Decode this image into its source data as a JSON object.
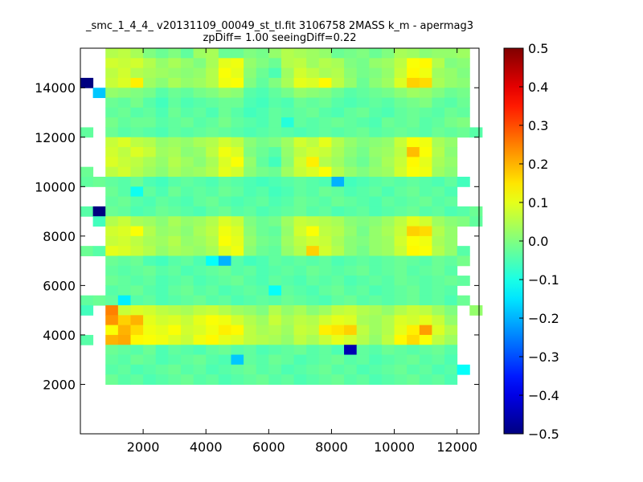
{
  "chart_data": {
    "type": "heatmap",
    "title_line1": "_smc_1_4_4_ v20131109_00049_st_tl.fit 3106758 2MASS k_m - apermag3",
    "title_line2": "zpDiff= 1.00 seeingDiff=0.22",
    "xlabel": "",
    "ylabel": "",
    "xlim": [
      0,
      12700
    ],
    "ylim": [
      0,
      15600
    ],
    "xticks": [
      2000,
      4000,
      6000,
      8000,
      10000,
      12000
    ],
    "yticks": [
      2000,
      4000,
      6000,
      8000,
      10000,
      12000,
      14000
    ],
    "xtick_labels": [
      "2000",
      "4000",
      "6000",
      "8000",
      "10000",
      "12000"
    ],
    "ytick_labels": [
      "2000",
      "4000",
      "6000",
      "8000",
      "10000",
      "12000",
      "14000"
    ],
    "colorbar": {
      "colormap": "jet",
      "vmin": -0.5,
      "vmax": 0.5,
      "ticks": [
        0.5,
        0.4,
        0.3,
        0.2,
        0.1,
        0.0,
        -0.1,
        -0.2,
        -0.3,
        -0.4,
        -0.5
      ],
      "tick_labels": [
        "0.5",
        "0.4",
        "0.3",
        "0.2",
        "0.1",
        "0.0",
        "−0.1",
        "−0.2",
        "−0.3",
        "−0.4",
        "−0.5"
      ]
    },
    "grid": false,
    "cell_size": 400,
    "y_rows_top_to_bottom": [
      15600,
      200
    ],
    "values": [
      [
        null,
        null,
        0.05,
        0.06,
        0.04,
        0.0,
        -0.02,
        0.0,
        -0.03,
        0.03,
        0.04,
        -0.02,
        -0.02,
        0.0,
        -0.01,
        0.02,
        0.05,
        0.04,
        0.03,
        0.02,
        -0.02,
        -0.01,
        0.0,
        -0.02,
        0.0,
        0.04,
        0.03,
        0.01,
        0.02,
        0.02,
        0.03,
        null
      ],
      [
        null,
        null,
        0.08,
        0.07,
        0.08,
        0.05,
        0.02,
        0.04,
        0.02,
        0.0,
        0.04,
        0.1,
        0.11,
        0.02,
        0.0,
        -0.02,
        0.05,
        0.06,
        0.03,
        0.05,
        0.04,
        0.0,
        -0.01,
        0.02,
        0.03,
        0.06,
        0.12,
        0.13,
        0.05,
        0.0,
        0.01,
        null
      ],
      [
        null,
        null,
        0.06,
        0.08,
        0.05,
        0.04,
        0.03,
        0.02,
        0.01,
        0.02,
        0.05,
        0.12,
        0.1,
        0.01,
        -0.02,
        -0.05,
        0.03,
        0.08,
        0.06,
        0.04,
        0.05,
        0.01,
        -0.01,
        0.0,
        0.02,
        0.07,
        0.13,
        0.11,
        0.03,
        0.02,
        0.0,
        null
      ],
      [
        -0.5,
        null,
        0.07,
        0.09,
        0.14,
        0.03,
        0.01,
        0.04,
        0.02,
        0.03,
        0.05,
        0.11,
        0.12,
        0.0,
        -0.03,
        0.0,
        0.04,
        0.1,
        0.09,
        0.13,
        0.06,
        0.02,
        -0.02,
        0.01,
        0.03,
        0.09,
        0.17,
        0.16,
        0.04,
        0.02,
        0.01,
        null
      ],
      [
        null,
        -0.18,
        0.02,
        0.01,
        0.0,
        -0.01,
        -0.04,
        -0.02,
        -0.03,
        -0.01,
        0.0,
        0.02,
        0.01,
        -0.04,
        -0.05,
        -0.03,
        -0.01,
        0.02,
        0.01,
        0.0,
        -0.02,
        -0.04,
        -0.03,
        -0.02,
        -0.01,
        0.01,
        0.03,
        0.02,
        0.0,
        -0.02,
        -0.01,
        null
      ],
      [
        null,
        null,
        -0.02,
        -0.03,
        -0.01,
        -0.04,
        -0.06,
        -0.03,
        -0.05,
        -0.04,
        -0.03,
        -0.02,
        -0.02,
        -0.05,
        -0.06,
        -0.04,
        -0.05,
        -0.02,
        -0.03,
        -0.02,
        -0.04,
        -0.05,
        -0.04,
        -0.03,
        -0.04,
        -0.02,
        -0.01,
        0.0,
        -0.03,
        -0.04,
        -0.02,
        null
      ],
      [
        null,
        null,
        -0.03,
        -0.02,
        -0.04,
        -0.03,
        -0.05,
        -0.02,
        -0.04,
        -0.03,
        -0.05,
        -0.02,
        -0.04,
        -0.06,
        -0.05,
        -0.03,
        -0.04,
        -0.03,
        -0.02,
        -0.04,
        -0.05,
        -0.03,
        -0.02,
        -0.04,
        -0.05,
        -0.03,
        -0.02,
        -0.03,
        -0.04,
        -0.02,
        -0.03,
        null
      ],
      [
        null,
        null,
        -0.01,
        -0.03,
        -0.02,
        -0.02,
        -0.04,
        -0.03,
        -0.02,
        -0.04,
        -0.03,
        -0.01,
        -0.03,
        -0.04,
        -0.05,
        -0.03,
        -0.09,
        -0.03,
        -0.04,
        -0.03,
        -0.02,
        -0.03,
        -0.04,
        -0.05,
        -0.02,
        -0.03,
        -0.02,
        -0.04,
        -0.03,
        -0.01,
        0.0,
        null
      ],
      [
        -0.03,
        null,
        -0.02,
        -0.04,
        -0.03,
        -0.04,
        -0.05,
        -0.03,
        -0.04,
        -0.03,
        -0.02,
        -0.03,
        -0.04,
        -0.05,
        -0.04,
        -0.03,
        -0.04,
        -0.05,
        -0.04,
        -0.03,
        -0.04,
        -0.03,
        -0.02,
        -0.04,
        -0.03,
        -0.02,
        -0.03,
        -0.04,
        -0.02,
        -0.03,
        -0.02,
        -0.04
      ],
      [
        null,
        null,
        0.07,
        0.09,
        0.06,
        0.05,
        0.02,
        0.03,
        0.02,
        0.04,
        0.05,
        0.08,
        0.06,
        0.01,
        -0.01,
        0.0,
        0.03,
        0.08,
        0.06,
        0.1,
        0.05,
        0.02,
        0.0,
        0.01,
        0.02,
        0.07,
        0.12,
        0.11,
        0.04,
        0.02,
        null,
        null
      ],
      [
        null,
        null,
        0.08,
        0.06,
        0.09,
        0.07,
        0.03,
        0.04,
        0.01,
        0.02,
        0.06,
        0.11,
        0.09,
        0.0,
        -0.02,
        -0.04,
        0.02,
        0.06,
        0.08,
        0.07,
        0.04,
        0.01,
        -0.01,
        0.02,
        0.03,
        0.06,
        0.19,
        0.12,
        0.05,
        0.01,
        null,
        null
      ],
      [
        null,
        null,
        0.09,
        0.07,
        0.06,
        0.04,
        0.02,
        0.05,
        0.03,
        0.01,
        0.04,
        0.09,
        0.12,
        0.02,
        -0.03,
        -0.06,
        0.01,
        0.08,
        0.14,
        0.05,
        0.03,
        0.0,
        -0.02,
        0.01,
        0.04,
        0.07,
        0.13,
        0.1,
        0.04,
        0.02,
        null,
        null
      ],
      [
        -0.02,
        null,
        0.06,
        0.08,
        0.05,
        0.03,
        0.01,
        0.04,
        0.02,
        0.03,
        0.05,
        0.1,
        0.08,
        0.01,
        -0.01,
        -0.02,
        0.03,
        0.07,
        0.09,
        0.12,
        0.05,
        0.02,
        0.0,
        0.02,
        0.03,
        0.08,
        0.12,
        0.11,
        0.03,
        0.01,
        null,
        null
      ],
      [
        -0.03,
        -0.02,
        -0.03,
        -0.04,
        -0.02,
        -0.05,
        -0.06,
        -0.04,
        -0.03,
        -0.04,
        -0.05,
        -0.03,
        -0.04,
        -0.05,
        -0.06,
        -0.05,
        -0.04,
        -0.03,
        -0.04,
        -0.05,
        -0.2,
        -0.06,
        -0.05,
        -0.04,
        -0.03,
        -0.04,
        -0.03,
        -0.04,
        -0.05,
        -0.03,
        -0.06,
        null
      ],
      [
        null,
        null,
        -0.02,
        -0.04,
        -0.11,
        -0.03,
        -0.05,
        -0.02,
        -0.04,
        -0.03,
        -0.04,
        -0.02,
        -0.03,
        -0.05,
        -0.04,
        -0.06,
        -0.05,
        -0.03,
        -0.04,
        -0.02,
        -0.03,
        -0.05,
        -0.04,
        -0.03,
        -0.05,
        -0.03,
        -0.02,
        -0.04,
        -0.03,
        -0.05,
        null,
        null
      ],
      [
        null,
        null,
        -0.03,
        -0.02,
        -0.04,
        -0.05,
        -0.03,
        -0.04,
        -0.05,
        -0.03,
        -0.02,
        -0.04,
        -0.05,
        -0.04,
        -0.03,
        -0.05,
        -0.04,
        -0.02,
        -0.03,
        -0.04,
        -0.02,
        -0.03,
        -0.04,
        -0.05,
        -0.03,
        -0.04,
        -0.03,
        -0.02,
        -0.04,
        -0.03,
        null,
        null
      ],
      [
        -0.04,
        -0.5,
        -0.02,
        -0.03,
        -0.05,
        -0.04,
        -0.02,
        -0.03,
        -0.04,
        -0.05,
        -0.03,
        -0.02,
        -0.04,
        -0.03,
        -0.05,
        -0.04,
        -0.03,
        -0.02,
        -0.04,
        -0.03,
        -0.05,
        -0.04,
        -0.03,
        -0.05,
        -0.04,
        -0.03,
        -0.02,
        -0.04,
        -0.03,
        -0.05,
        -0.04,
        -0.02
      ],
      [
        null,
        -0.06,
        0.05,
        0.07,
        0.04,
        0.03,
        0.01,
        0.04,
        0.02,
        0.03,
        0.05,
        0.09,
        0.07,
        0.0,
        -0.02,
        -0.01,
        0.03,
        0.07,
        0.06,
        0.05,
        0.04,
        0.01,
        0.0,
        0.01,
        0.03,
        0.06,
        0.1,
        0.08,
        0.03,
        0.01,
        0.0,
        -0.03
      ],
      [
        null,
        null,
        0.08,
        0.09,
        0.12,
        0.05,
        0.02,
        0.03,
        0.01,
        0.04,
        0.06,
        0.11,
        0.09,
        0.01,
        -0.02,
        -0.03,
        0.02,
        0.08,
        0.12,
        0.06,
        0.05,
        0.02,
        -0.01,
        0.02,
        0.04,
        0.07,
        0.17,
        0.16,
        0.05,
        0.02,
        null,
        null
      ],
      [
        null,
        null,
        0.07,
        0.08,
        0.06,
        0.04,
        0.03,
        0.05,
        0.02,
        0.03,
        0.05,
        0.12,
        0.1,
        0.02,
        -0.01,
        -0.02,
        0.03,
        0.06,
        0.08,
        0.07,
        0.04,
        0.01,
        0.0,
        0.02,
        0.03,
        0.08,
        0.12,
        0.11,
        0.04,
        0.02,
        null,
        null
      ],
      [
        -0.02,
        -0.04,
        0.1,
        0.09,
        0.07,
        0.05,
        0.02,
        0.04,
        0.03,
        0.02,
        0.04,
        0.09,
        0.11,
        0.01,
        -0.02,
        -0.03,
        0.02,
        0.05,
        0.17,
        0.08,
        0.05,
        0.01,
        -0.01,
        0.02,
        0.03,
        0.07,
        0.13,
        0.12,
        0.05,
        0.02,
        -0.04,
        null
      ],
      [
        null,
        null,
        -0.02,
        -0.03,
        -0.02,
        -0.05,
        -0.06,
        -0.04,
        -0.03,
        -0.05,
        -0.12,
        -0.2,
        -0.04,
        -0.06,
        -0.05,
        -0.03,
        -0.04,
        -0.03,
        -0.04,
        -0.03,
        -0.05,
        -0.04,
        -0.03,
        -0.04,
        -0.03,
        -0.02,
        -0.03,
        -0.04,
        -0.02,
        -0.03,
        -0.01,
        null
      ],
      [
        null,
        null,
        -0.03,
        -0.04,
        -0.03,
        -0.02,
        -0.04,
        -0.03,
        -0.05,
        -0.04,
        -0.03,
        -0.02,
        -0.04,
        -0.03,
        -0.05,
        -0.04,
        -0.03,
        -0.04,
        -0.02,
        -0.03,
        -0.04,
        -0.03,
        -0.02,
        -0.04,
        -0.03,
        -0.02,
        -0.04,
        -0.03,
        -0.02,
        -0.04,
        null,
        null
      ],
      [
        null,
        null,
        -0.02,
        -0.03,
        -0.04,
        -0.03,
        -0.05,
        -0.04,
        -0.03,
        -0.05,
        -0.04,
        -0.03,
        -0.02,
        -0.04,
        -0.05,
        -0.03,
        -0.04,
        -0.05,
        -0.03,
        -0.04,
        -0.03,
        -0.05,
        -0.04,
        -0.03,
        -0.04,
        -0.02,
        -0.03,
        -0.04,
        -0.03,
        -0.02,
        -0.03,
        null
      ],
      [
        null,
        null,
        -0.04,
        -0.03,
        -0.02,
        -0.04,
        -0.05,
        -0.03,
        -0.02,
        -0.04,
        -0.03,
        -0.05,
        -0.04,
        -0.03,
        -0.04,
        -0.12,
        -0.03,
        -0.04,
        -0.05,
        -0.03,
        -0.02,
        -0.04,
        -0.03,
        -0.05,
        -0.04,
        -0.03,
        -0.02,
        -0.04,
        -0.03,
        -0.04,
        null,
        null
      ],
      [
        -0.03,
        -0.02,
        -0.03,
        -0.14,
        -0.04,
        -0.03,
        -0.05,
        -0.04,
        -0.03,
        -0.02,
        -0.04,
        -0.03,
        -0.05,
        -0.04,
        -0.03,
        -0.04,
        -0.02,
        -0.03,
        -0.04,
        -0.05,
        -0.03,
        -0.02,
        -0.04,
        -0.03,
        -0.04,
        -0.03,
        -0.02,
        -0.04,
        -0.03,
        -0.05,
        -0.02,
        null
      ],
      [
        -0.06,
        null,
        0.25,
        0.07,
        0.09,
        0.08,
        0.06,
        0.05,
        0.04,
        0.06,
        0.07,
        0.05,
        0.03,
        0.02,
        0.0,
        0.05,
        0.02,
        0.04,
        0.01,
        0.03,
        0.06,
        0.07,
        0.05,
        0.04,
        0.02,
        0.05,
        0.07,
        0.06,
        0.03,
        0.0,
        null,
        0.02
      ],
      [
        null,
        null,
        0.23,
        0.17,
        0.2,
        0.1,
        0.08,
        0.09,
        0.07,
        0.1,
        0.12,
        0.11,
        0.08,
        0.05,
        0.03,
        0.07,
        0.04,
        0.06,
        0.05,
        0.08,
        0.1,
        0.09,
        0.04,
        0.03,
        0.05,
        0.09,
        0.08,
        0.1,
        0.07,
        0.02,
        null,
        null
      ],
      [
        null,
        null,
        0.12,
        0.2,
        0.16,
        0.11,
        0.1,
        0.12,
        0.08,
        0.09,
        0.11,
        0.14,
        0.13,
        0.06,
        0.04,
        0.05,
        0.03,
        0.07,
        0.06,
        0.14,
        0.15,
        0.17,
        0.06,
        0.03,
        0.05,
        0.1,
        0.14,
        0.22,
        0.09,
        0.05,
        null,
        null
      ],
      [
        -0.04,
        null,
        0.2,
        0.21,
        0.13,
        0.12,
        0.11,
        0.09,
        0.07,
        0.11,
        0.13,
        0.1,
        0.09,
        0.06,
        0.05,
        0.04,
        0.02,
        0.06,
        0.04,
        0.07,
        0.1,
        0.08,
        0.05,
        0.02,
        0.06,
        0.13,
        0.16,
        0.12,
        0.06,
        0.03,
        null,
        null
      ],
      [
        null,
        null,
        -0.02,
        -0.03,
        -0.04,
        -0.02,
        -0.05,
        -0.03,
        -0.04,
        -0.05,
        -0.03,
        -0.02,
        -0.04,
        -0.03,
        -0.05,
        -0.04,
        -0.03,
        -0.02,
        -0.04,
        -0.03,
        -0.05,
        -0.45,
        -0.03,
        -0.04,
        -0.02,
        -0.03,
        -0.04,
        -0.03,
        -0.02,
        -0.04,
        null,
        null
      ],
      [
        null,
        null,
        -0.03,
        -0.04,
        -0.02,
        -0.03,
        -0.05,
        -0.04,
        -0.03,
        -0.02,
        -0.04,
        -0.05,
        -0.18,
        -0.03,
        -0.04,
        -0.02,
        -0.03,
        -0.05,
        -0.04,
        -0.03,
        -0.02,
        -0.04,
        -0.03,
        -0.05,
        -0.04,
        -0.03,
        -0.02,
        -0.04,
        -0.03,
        -0.05,
        null,
        null
      ],
      [
        null,
        null,
        -0.04,
        -0.03,
        -0.05,
        -0.04,
        -0.03,
        -0.02,
        -0.04,
        -0.03,
        -0.05,
        -0.04,
        -0.03,
        -0.02,
        -0.04,
        -0.03,
        -0.05,
        -0.04,
        -0.03,
        -0.02,
        -0.04,
        -0.03,
        -0.05,
        -0.04,
        -0.03,
        -0.02,
        -0.04,
        -0.03,
        -0.05,
        -0.04,
        -0.12,
        null
      ],
      [
        null,
        null,
        -0.02,
        -0.04,
        -0.03,
        -0.05,
        -0.04,
        -0.03,
        -0.02,
        -0.04,
        -0.03,
        -0.05,
        -0.04,
        -0.03,
        -0.02,
        -0.04,
        -0.03,
        -0.05,
        -0.04,
        -0.03,
        -0.02,
        -0.04,
        -0.03,
        -0.05,
        -0.04,
        -0.03,
        -0.02,
        -0.04,
        -0.03,
        -0.05,
        null,
        null
      ]
    ]
  }
}
